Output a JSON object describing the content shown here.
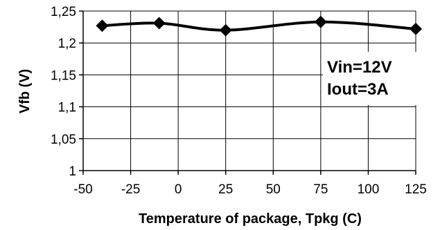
{
  "chart_data": {
    "type": "line",
    "xlabel": "Temperature of package, Tpkg (C)",
    "ylabel": "Vfb (V)",
    "xlim": [
      -50,
      125
    ],
    "ylim": [
      1,
      1.25
    ],
    "x_ticks": [
      -50,
      -25,
      0,
      25,
      50,
      75,
      100,
      125
    ],
    "x_tick_labels": [
      "-50",
      "-25",
      "0",
      "25",
      "50",
      "75",
      "100",
      "125"
    ],
    "y_ticks": [
      1,
      1.05,
      1.1,
      1.15,
      1.2,
      1.25
    ],
    "y_tick_labels": [
      "1",
      "1,05",
      "1,1",
      "1,15",
      "1,2",
      "1,25"
    ],
    "grid": true,
    "legend": "none",
    "line_style": "smooth",
    "marker": "diamond",
    "colors": {
      "series": "#000000",
      "grid": "#000000"
    },
    "series": [
      {
        "x": [
          -40,
          -10,
          25,
          75,
          125
        ],
        "y": [
          1.227,
          1.231,
          1.22,
          1.233,
          1.222
        ]
      }
    ],
    "annotations": [
      "Vin=12V",
      "Iout=3A"
    ]
  }
}
